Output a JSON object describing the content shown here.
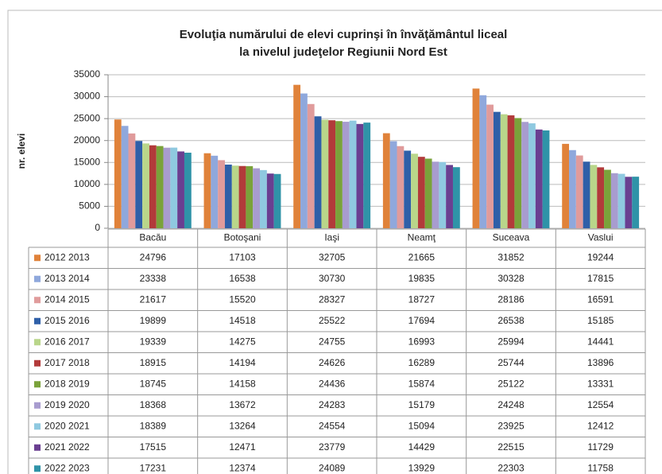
{
  "chart_data": {
    "type": "bar",
    "title": [
      "Evoluţia numărului de elevi cuprinşi în învăţământul liceal",
      "la nivelul judeţelor Regiunii Nord Est"
    ],
    "y_label": "nr. elevi",
    "categories": [
      "Bacău",
      "Botoşani",
      "Iaşi",
      "Neamţ",
      "Suceava",
      "Vaslui"
    ],
    "ylim": [
      0,
      35000
    ],
    "yticks": [
      0,
      5000,
      10000,
      15000,
      20000,
      25000,
      30000,
      35000
    ],
    "grid": true,
    "series": [
      {
        "name": "2012 2013",
        "color": "#e0823a",
        "values": [
          24796,
          17103,
          32705,
          21665,
          31852,
          19244
        ]
      },
      {
        "name": "2013 2014",
        "color": "#8fa8dc",
        "values": [
          23338,
          16538,
          30730,
          19835,
          30328,
          17815
        ]
      },
      {
        "name": "2014 2015",
        "color": "#e09b9b",
        "values": [
          21617,
          15520,
          28327,
          18727,
          28186,
          16591
        ]
      },
      {
        "name": "2015 2016",
        "color": "#2e5fa8",
        "values": [
          19899,
          14518,
          25522,
          17694,
          26538,
          15185
        ]
      },
      {
        "name": "2016 2017",
        "color": "#b9d68a",
        "values": [
          19339,
          14275,
          24755,
          16993,
          25994,
          14441
        ]
      },
      {
        "name": "2017 2018",
        "color": "#b23a3a",
        "values": [
          18915,
          14194,
          24626,
          16289,
          25744,
          13896
        ]
      },
      {
        "name": "2018 2019",
        "color": "#7aa23a",
        "values": [
          18745,
          14158,
          24436,
          15874,
          25122,
          13331
        ]
      },
      {
        "name": "2019 2020",
        "color": "#a89ccf",
        "values": [
          18368,
          13672,
          24283,
          15179,
          24248,
          12554
        ]
      },
      {
        "name": "2020 2021",
        "color": "#8fc9e0",
        "values": [
          18389,
          13264,
          24554,
          15094,
          23925,
          12412
        ]
      },
      {
        "name": "2021 2022",
        "color": "#6a3f91",
        "values": [
          17515,
          12471,
          23779,
          14429,
          22515,
          11729
        ]
      },
      {
        "name": "2022 2023",
        "color": "#2f93a8",
        "values": [
          17231,
          12374,
          24089,
          13929,
          22303,
          11758
        ]
      }
    ]
  }
}
